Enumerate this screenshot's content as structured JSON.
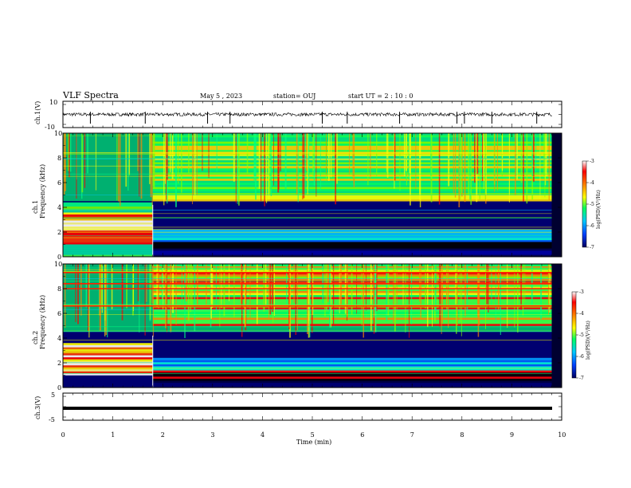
{
  "header": {
    "title": "VLF Spectra",
    "date": "May 5 , 2023",
    "station": "station= OUJ",
    "start": "start  UT  =  2 : 10 : 0"
  },
  "colors": {
    "axis": "#000000",
    "waveform": "#000000",
    "colormap": [
      "#000000",
      "#0000c8",
      "#0050ff",
      "#00c8ff",
      "#00ff80",
      "#80ff00",
      "#ffff00",
      "#ff9900",
      "#ff0000",
      "#ffffff"
    ]
  },
  "chart_data": [
    {
      "type": "line",
      "name": "ch1-waveform",
      "ylabel": "ch.1(V)",
      "ylim": [
        -10,
        10
      ],
      "yticks": [
        "10",
        "-10"
      ],
      "xlim": [
        0,
        10
      ],
      "baseline": 0,
      "amplitude": 2.5,
      "spikes_min": [
        0.55,
        1.65,
        2.9,
        3.35,
        5.2,
        5.7,
        6.75,
        7.9,
        8.05,
        8.6,
        9.5
      ]
    },
    {
      "type": "heatmap",
      "name": "ch1-spectrogram",
      "ylabel": "ch.1\nFrequency (kHz)",
      "ylabel_lines": [
        "ch.1",
        "Frequency (kHz)"
      ],
      "xlim": [
        0,
        9.8
      ],
      "ylim": [
        0,
        10
      ],
      "yticks": [
        "0",
        "2",
        "4",
        "6",
        "8",
        "10"
      ],
      "colorbar": {
        "label": "log(PSD)(V²/Hz)",
        "range": [
          -7,
          -3
        ],
        "ticks": [
          "-3",
          "-4",
          "-5",
          "-6",
          "-7"
        ]
      },
      "transition_min": 1.8,
      "bands_khz": {
        "before": [
          [
            1.0,
            3.6,
            "red-yellow"
          ],
          [
            0.0,
            1.0,
            "green"
          ],
          [
            3.6,
            4.4,
            "green"
          ]
        ],
        "after": [
          [
            1.2,
            2.2,
            "cyan-blue"
          ],
          [
            0.0,
            1.2,
            "black-blue"
          ],
          [
            4.5,
            10.0,
            "green-yellow"
          ]
        ]
      }
    },
    {
      "type": "heatmap",
      "name": "ch2-spectrogram",
      "ylabel": "ch.2\nFrequency (kHz)",
      "ylabel_lines": [
        "ch.2",
        "Frequency (kHz)"
      ],
      "xlim": [
        0,
        9.8
      ],
      "ylim": [
        0,
        10
      ],
      "yticks": [
        "0",
        "2",
        "4",
        "6",
        "8",
        "10"
      ],
      "colorbar": {
        "label": "log(PSD)(V²/Hz)",
        "range": [
          -7,
          -3
        ],
        "ticks": [
          "-3",
          "-4",
          "-5",
          "-6",
          "-7"
        ]
      },
      "transition_min": 1.8,
      "lines_khz": [
        6.6,
        8.0,
        8.4,
        9.3
      ],
      "bands_khz": {
        "before": [
          [
            1.0,
            3.6,
            "red-yellow"
          ]
        ],
        "after": [
          [
            0.4,
            1.4,
            "black-red"
          ],
          [
            1.4,
            2.4,
            "cyan-blue"
          ],
          [
            5.0,
            10.0,
            "green-yellow-red"
          ]
        ]
      }
    },
    {
      "type": "line",
      "name": "ch3-trace",
      "ylabel": "ch.3(V)",
      "ylim": [
        -5,
        5
      ],
      "yticks": [
        "5",
        "-5"
      ],
      "xlim": [
        0,
        10
      ],
      "value": -1.5
    }
  ],
  "xaxis": {
    "label": "Time (min)",
    "range": [
      0,
      10
    ],
    "ticks": [
      "0",
      "1",
      "2",
      "3",
      "4",
      "5",
      "6",
      "7",
      "8",
      "9",
      "10"
    ]
  }
}
